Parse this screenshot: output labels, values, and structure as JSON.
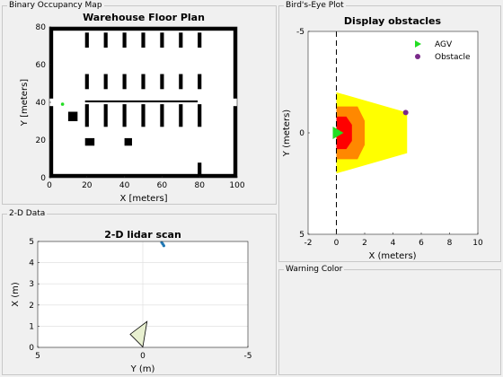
{
  "panels": {
    "occupancy": "Binary Occupancy Map",
    "birdseye": "Bird's-Eye Plot",
    "lidar": "2-D Data",
    "warning": "Warning Color"
  },
  "occupancy_map": {
    "title": "Warehouse Floor Plan",
    "xlabel": "X [meters]",
    "ylabel": "Y [meters]",
    "xticks": [
      "0",
      "20",
      "40",
      "60",
      "80",
      "100"
    ],
    "yticks": [
      "0",
      "20",
      "40",
      "60",
      "80"
    ]
  },
  "birdseye_plot": {
    "title": "Display obstacles",
    "xlabel": "X (meters)",
    "ylabel": "Y (meters)",
    "xticks": [
      "-2",
      "0",
      "2",
      "4",
      "6",
      "8",
      "10"
    ],
    "yticks": [
      "-5",
      "0",
      "5"
    ],
    "legend": [
      "AGV",
      "Obstacle"
    ]
  },
  "lidar_plot": {
    "title": "2-D lidar scan",
    "xlabel": "Y (m)",
    "ylabel": "X (m)",
    "xticks": [
      "5",
      "0",
      "-5"
    ],
    "yticks": [
      "0",
      "1",
      "2",
      "3",
      "4",
      "5"
    ]
  },
  "colors": {
    "agv": "#22dd22",
    "obstacle": "#7a2a8a",
    "zone_red": "#ff0000",
    "zone_orange": "#ff8800",
    "zone_yellow": "#ffff00",
    "lidar_points": "#1f77b4"
  },
  "chart_data": [
    {
      "type": "heatmap",
      "title": "Warehouse Floor Plan",
      "xlabel": "X [meters]",
      "ylabel": "Y [meters]",
      "xlim": [
        0,
        100
      ],
      "ylim": [
        0,
        80
      ],
      "robot_position": [
        7,
        39
      ],
      "obstacles": [
        {
          "x": [
            0,
            100
          ],
          "y": [
            0,
            2
          ]
        },
        {
          "x": [
            0,
            100
          ],
          "y": [
            78,
            80
          ]
        },
        {
          "x": [
            0,
            2
          ],
          "y": [
            0,
            38
          ]
        },
        {
          "x": [
            0,
            2
          ],
          "y": [
            42,
            80
          ]
        },
        {
          "x": [
            98,
            100
          ],
          "y": [
            0,
            38
          ]
        },
        {
          "x": [
            98,
            100
          ],
          "y": [
            42,
            80
          ]
        },
        {
          "x": [
            10,
            15
          ],
          "y": [
            30,
            35
          ]
        },
        {
          "x": [
            19,
            24
          ],
          "y": [
            17,
            21
          ]
        },
        {
          "x": [
            40,
            44
          ],
          "y": [
            17,
            21
          ]
        },
        {
          "x": [
            19,
            22
          ],
          "y": [
            40,
            41
          ]
        },
        {
          "x": [
            22,
            79
          ],
          "y": [
            40,
            41
          ]
        },
        {
          "x": [
            19,
            21
          ],
          "y": [
            69,
            77
          ]
        },
        {
          "x": [
            29,
            31
          ],
          "y": [
            69,
            77
          ]
        },
        {
          "x": [
            39,
            41
          ],
          "y": [
            69,
            77
          ]
        },
        {
          "x": [
            49,
            51
          ],
          "y": [
            69,
            77
          ]
        },
        {
          "x": [
            59,
            61
          ],
          "y": [
            69,
            77
          ]
        },
        {
          "x": [
            69,
            71
          ],
          "y": [
            69,
            77
          ]
        },
        {
          "x": [
            79,
            81
          ],
          "y": [
            69,
            77
          ]
        },
        {
          "x": [
            19,
            21
          ],
          "y": [
            47,
            55
          ]
        },
        {
          "x": [
            29,
            31
          ],
          "y": [
            47,
            55
          ]
        },
        {
          "x": [
            39,
            41
          ],
          "y": [
            47,
            55
          ]
        },
        {
          "x": [
            49,
            51
          ],
          "y": [
            47,
            55
          ]
        },
        {
          "x": [
            59,
            61
          ],
          "y": [
            47,
            55
          ]
        },
        {
          "x": [
            69,
            71
          ],
          "y": [
            47,
            55
          ]
        },
        {
          "x": [
            79,
            81
          ],
          "y": [
            47,
            55
          ]
        },
        {
          "x": [
            19,
            21
          ],
          "y": [
            27,
            39
          ]
        },
        {
          "x": [
            29,
            31
          ],
          "y": [
            27,
            39
          ]
        },
        {
          "x": [
            39,
            41
          ],
          "y": [
            27,
            39
          ]
        },
        {
          "x": [
            49,
            51
          ],
          "y": [
            27,
            39
          ]
        },
        {
          "x": [
            59,
            61
          ],
          "y": [
            27,
            39
          ]
        },
        {
          "x": [
            69,
            71
          ],
          "y": [
            27,
            39
          ]
        },
        {
          "x": [
            79,
            81
          ],
          "y": [
            27,
            39
          ]
        },
        {
          "x": [
            79,
            81
          ],
          "y": [
            0,
            8
          ]
        }
      ]
    },
    {
      "type": "area",
      "title": "Display obstacles",
      "xlabel": "X (meters)",
      "ylabel": "Y (meters)",
      "xlim": [
        -2,
        10
      ],
      "ylim": [
        -5,
        5
      ],
      "x_axis_vertical": true,
      "zones": [
        {
          "name": "yellow",
          "polygon": [
            [
              0,
              2
            ],
            [
              5,
              1
            ],
            [
              5,
              -1
            ],
            [
              0,
              -2
            ]
          ]
        },
        {
          "name": "orange",
          "polygon": [
            [
              0,
              1.3
            ],
            [
              1.5,
              1.3
            ],
            [
              2,
              0.6
            ],
            [
              2,
              -0.6
            ],
            [
              1.5,
              -1.3
            ],
            [
              0,
              -1.3
            ]
          ]
        },
        {
          "name": "red",
          "polygon": [
            [
              0,
              0.8
            ],
            [
              0.7,
              0.8
            ],
            [
              1.1,
              0.4
            ],
            [
              1.1,
              -0.4
            ],
            [
              0.7,
              -0.8
            ],
            [
              0,
              -0.8
            ]
          ]
        }
      ],
      "agv": [
        0,
        0
      ],
      "obstacle_point": [
        4.9,
        1.0
      ],
      "legend": [
        "AGV",
        "Obstacle"
      ]
    },
    {
      "type": "scatter",
      "title": "2-D lidar scan",
      "xlabel": "Y (m)",
      "ylabel": "X (m)",
      "xlim": [
        5,
        -5
      ],
      "ylim": [
        0,
        5
      ],
      "grid": true,
      "points": [
        {
          "y": -0.9,
          "x": 4.95
        },
        {
          "y": -0.95,
          "x": 4.88
        },
        {
          "y": -1.0,
          "x": 4.8
        }
      ],
      "sensor_triangle": [
        [
          0,
          0
        ],
        [
          1.2,
          -0.2
        ],
        [
          0.6,
          0.6
        ]
      ]
    }
  ]
}
